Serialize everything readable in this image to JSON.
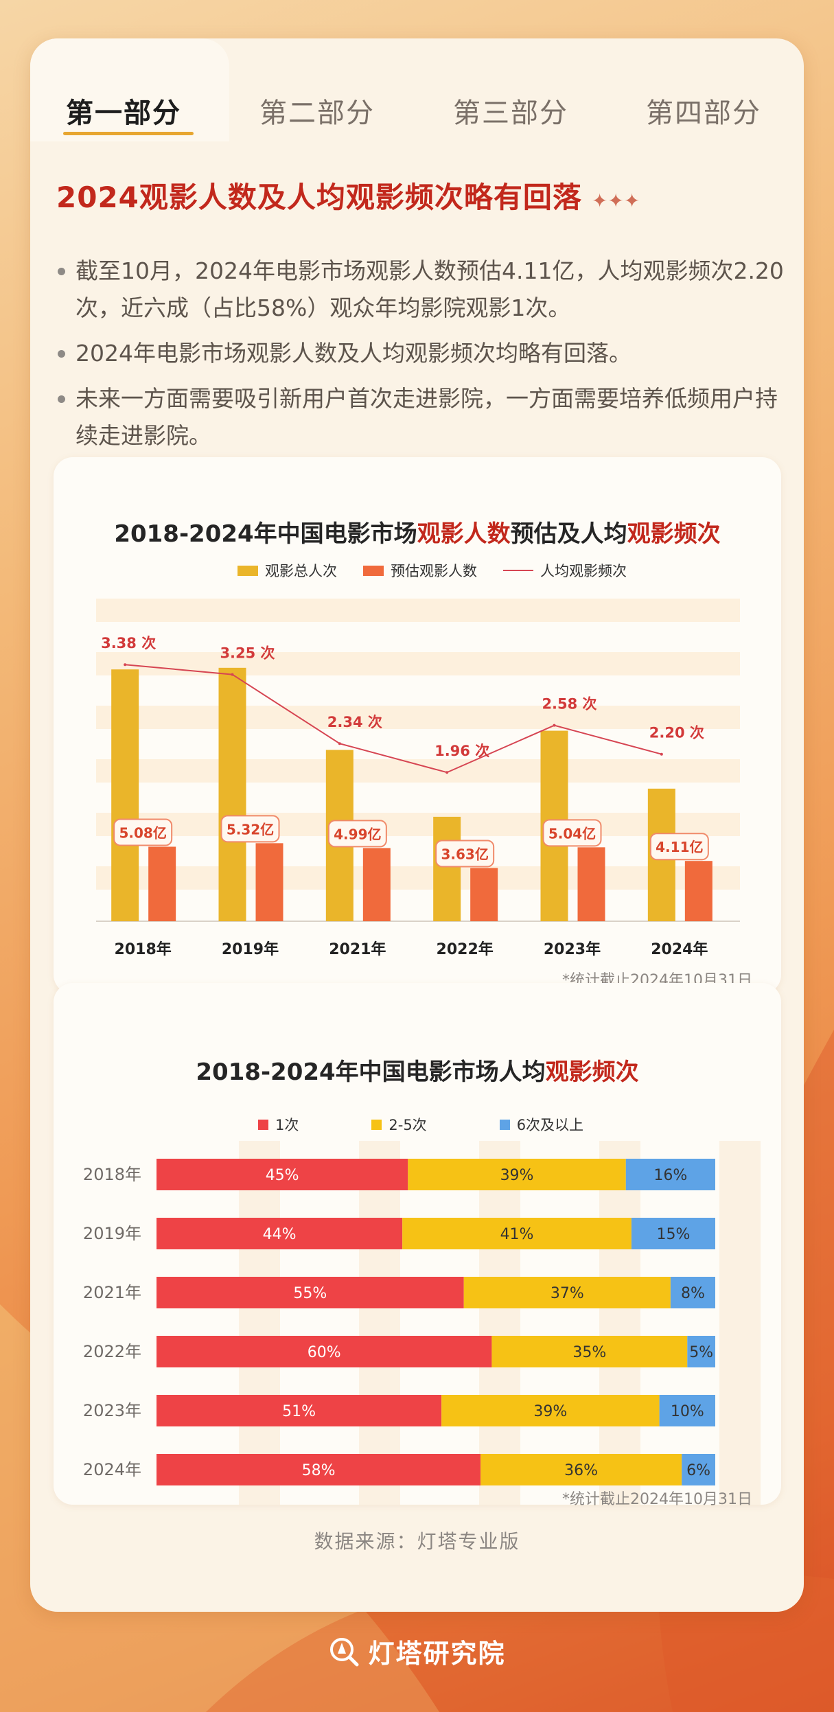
{
  "tabs": [
    "第一部分",
    "第二部分",
    "第三部分",
    "第四部分"
  ],
  "active_tab": 0,
  "headline": "2024观影人数及人均观影频次略有回落",
  "headline_decoration": "✦✦✦",
  "bullets": [
    "截至10月，2024年电影市场观影人数预估4.11亿，人均观影频次2.20次，近六成（占比58%）观众年均影院观影1次。",
    "2024年电影市场观影人数及人均观影频次均略有回落。",
    "未来一方面需要吸引新用户首次走进影院，一方面需要培养低频用户持续走进影院。"
  ],
  "chart_data": [
    {
      "type": "bar",
      "title_parts": [
        {
          "text": "2018-2024年中国电影市场",
          "highlight": false
        },
        {
          "text": "观影人数",
          "highlight": true
        },
        {
          "text": "预估及人均",
          "highlight": false
        },
        {
          "text": "观影频次",
          "highlight": true
        }
      ],
      "categories": [
        "2018年",
        "2019年",
        "2021年",
        "2022年",
        "2023年",
        "2024年"
      ],
      "series": [
        {
          "name": "观影总人次",
          "kind": "bar",
          "color": "#eab52a",
          "values": [
            17.17,
            17.28,
            11.68,
            7.12,
            12.99,
            9.04
          ]
        },
        {
          "name": "预估观影人数",
          "kind": "bar",
          "color": "#f06a3c",
          "values": [
            5.08,
            5.32,
            4.99,
            3.63,
            5.04,
            4.11
          ],
          "labels": [
            "5.08亿",
            "5.32亿",
            "4.99亿",
            "3.63亿",
            "5.04亿",
            "4.11亿"
          ]
        },
        {
          "name": "人均观影频次",
          "kind": "line",
          "color": "#d64552",
          "values": [
            3.38,
            3.25,
            2.34,
            1.96,
            2.58,
            2.2
          ],
          "labels": [
            "3.38 次",
            "3.25 次",
            "2.34 次",
            "1.96 次",
            "2.58 次",
            "2.20 次"
          ]
        }
      ],
      "note": "*统计截止2024年10月31日"
    },
    {
      "type": "bar",
      "orientation": "horizontal",
      "stacked": true,
      "title_parts": [
        {
          "text": "2018-2024年中国电影市场人均",
          "highlight": false
        },
        {
          "text": "观影频次",
          "highlight": true
        }
      ],
      "categories": [
        "2018年",
        "2019年",
        "2021年",
        "2022年",
        "2023年",
        "2024年"
      ],
      "series": [
        {
          "name": "1次",
          "color": "#ee4346",
          "values": [
            45,
            44,
            55,
            60,
            51,
            58
          ]
        },
        {
          "name": "2-5次",
          "color": "#f6c215",
          "values": [
            39,
            41,
            37,
            35,
            39,
            36
          ]
        },
        {
          "name": "6次及以上",
          "color": "#5ea3e6",
          "values": [
            16,
            15,
            8,
            5,
            10,
            6
          ]
        }
      ],
      "unit": "%",
      "note": "*统计截止2024年10月31日"
    }
  ],
  "source": "数据来源：灯塔专业版",
  "brand": "灯塔研究院"
}
